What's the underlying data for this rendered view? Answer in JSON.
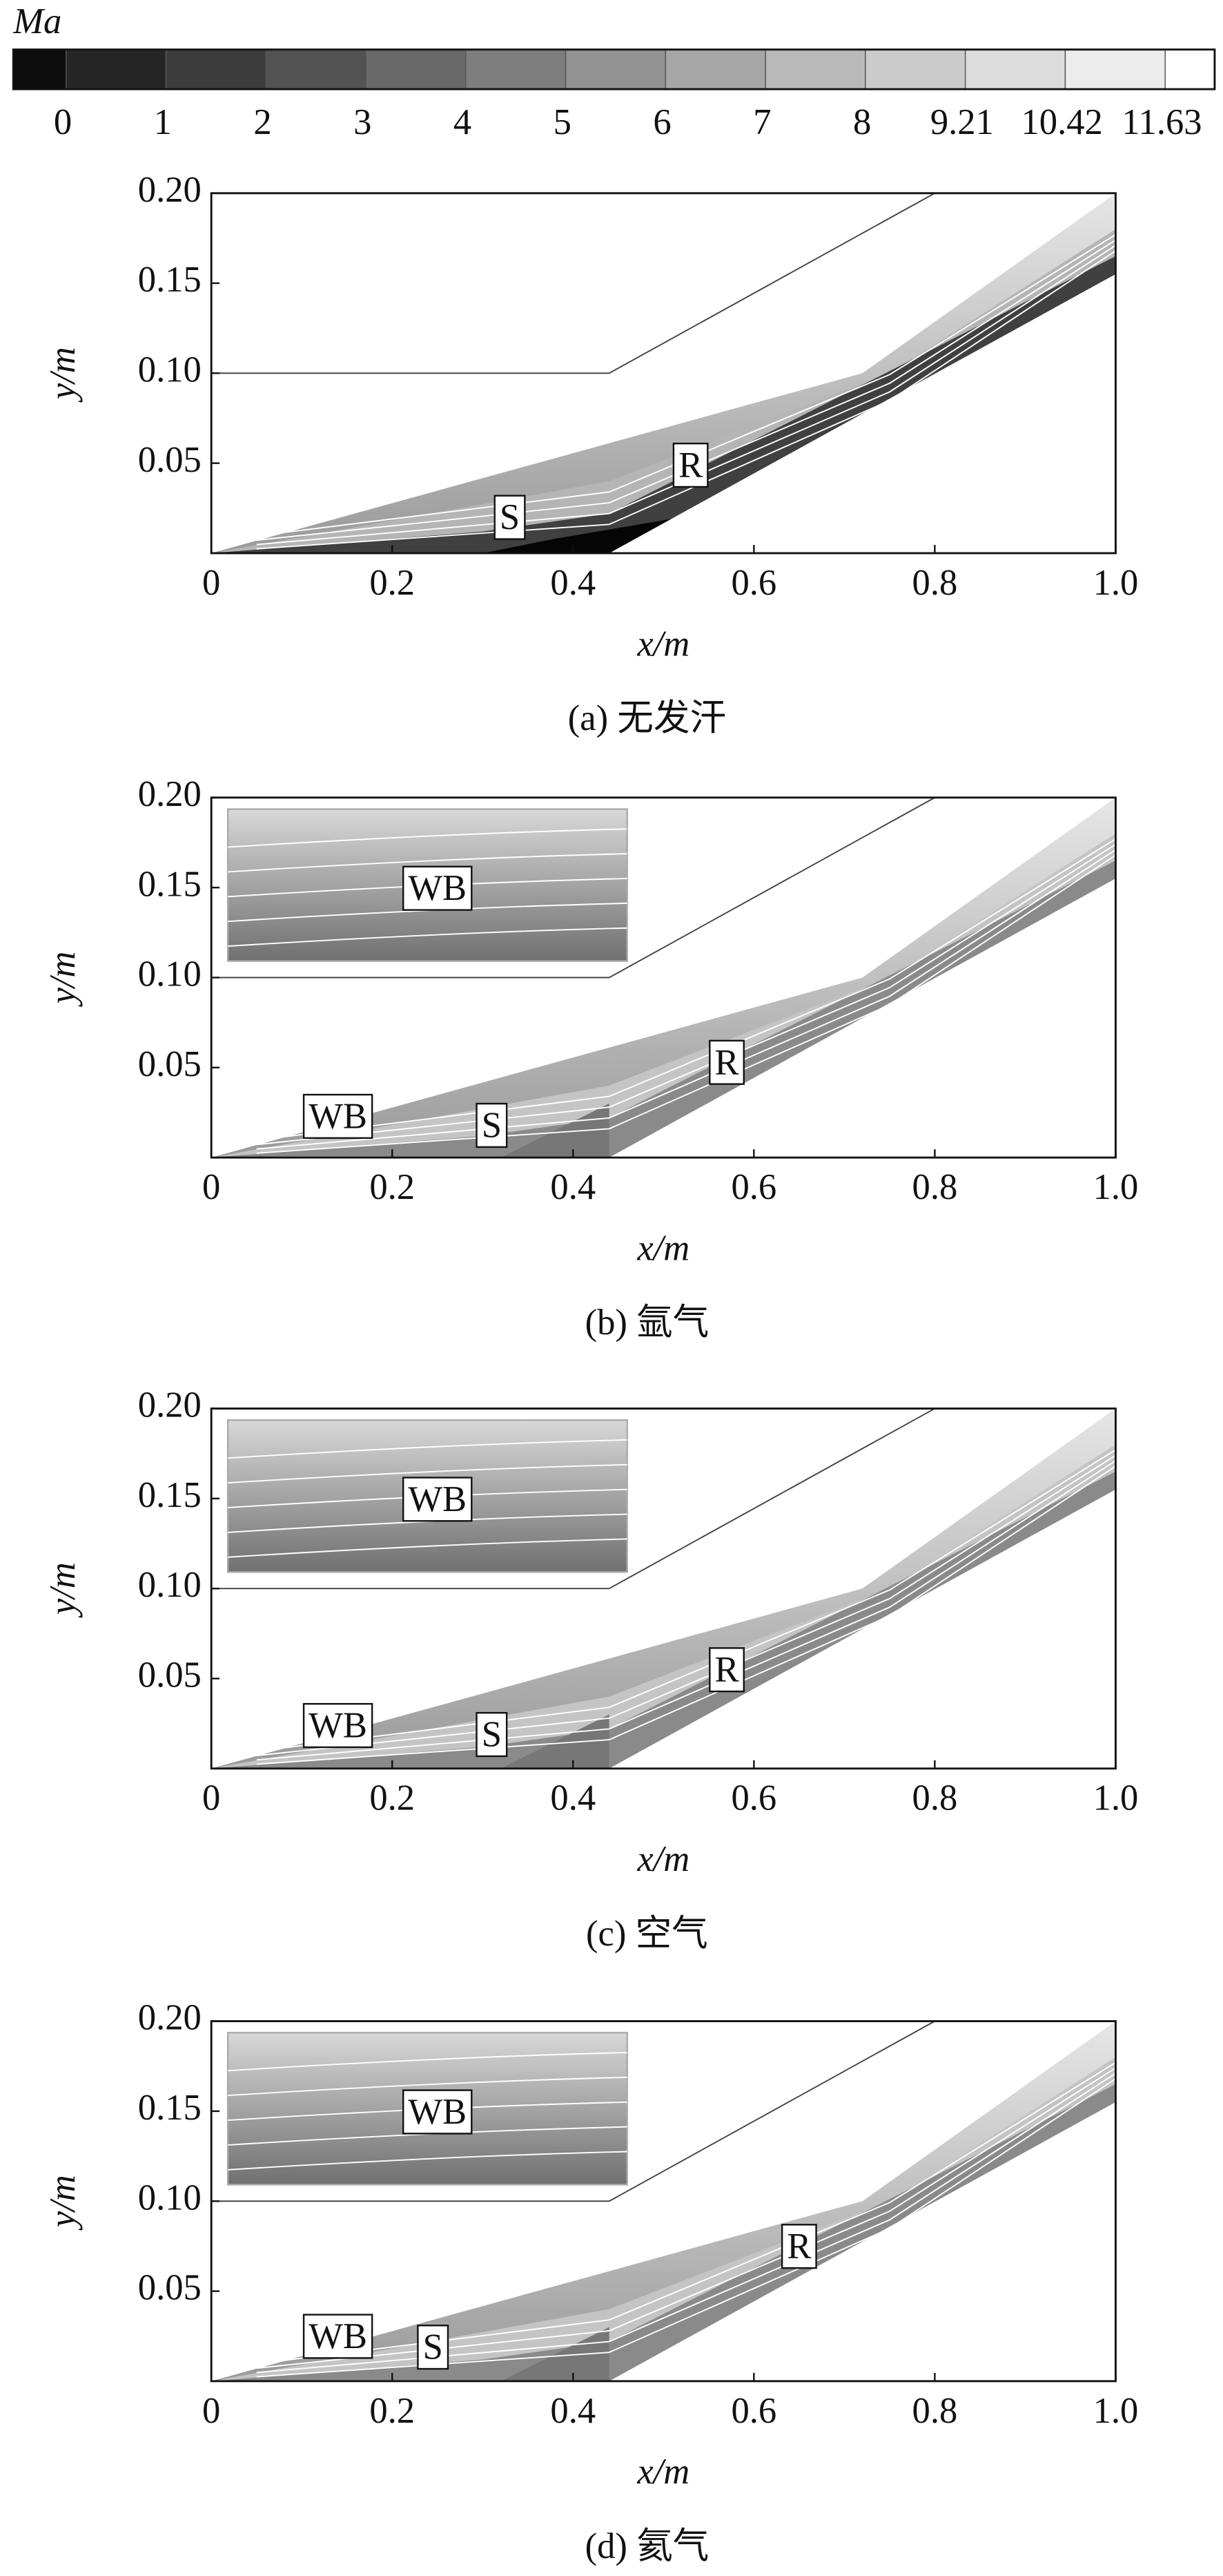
{
  "chart_data": [
    {
      "type": "colorbar",
      "title": "Ma",
      "colors": [
        "#0d0d0d",
        "#262626",
        "#3c3c3c",
        "#525252",
        "#696969",
        "#7e7e7e",
        "#939393",
        "#a6a6a6",
        "#b9b9b9",
        "#cbcbcb",
        "#dcdcdc",
        "#ececec",
        "#ffffff"
      ],
      "ticks": [
        0,
        1,
        2,
        3,
        4,
        5,
        6,
        7,
        8,
        9.21,
        10.42,
        11.63
      ]
    },
    {
      "type": "contour",
      "caption": "(a) 无发汗",
      "xlabel": "x/m",
      "ylabel": "y/m",
      "xlim": [
        0,
        1
      ],
      "ylim": [
        0,
        0.2
      ],
      "xticks": [
        0,
        0.2,
        0.4,
        0.6,
        0.8,
        {
          "value": 1,
          "label": "1.0"
        }
      ],
      "yticks": [
        0.05,
        {
          "value": 0.1,
          "label": "0.10"
        },
        0.15,
        {
          "value": 0.2,
          "label": "0.20"
        }
      ],
      "annotations": [
        {
          "text": "S",
          "x": 0.33,
          "y": 0.018
        },
        {
          "text": "R",
          "x": 0.53,
          "y": 0.047
        }
      ]
    },
    {
      "type": "contour",
      "caption": "(b) 氩气",
      "xlabel": "x/m",
      "ylabel": "y/m",
      "xlim": [
        0,
        1
      ],
      "ylim": [
        0,
        0.2
      ],
      "xticks": [
        0,
        0.2,
        0.4,
        0.6,
        0.8,
        {
          "value": 1,
          "label": "1.0"
        }
      ],
      "yticks": [
        0.05,
        {
          "value": 0.1,
          "label": "0.10"
        },
        0.15,
        {
          "value": 0.2,
          "label": "0.20"
        }
      ],
      "inset": {
        "label": "WB"
      },
      "annotations": [
        {
          "text": "WB",
          "x": 0.14,
          "y": 0.021
        },
        {
          "text": "S",
          "x": 0.31,
          "y": 0.016
        },
        {
          "text": "R",
          "x": 0.57,
          "y": 0.051
        }
      ]
    },
    {
      "type": "contour",
      "caption": "(c) 空气",
      "xlabel": "x/m",
      "ylabel": "y/m",
      "xlim": [
        0,
        1
      ],
      "ylim": [
        0,
        0.2
      ],
      "xticks": [
        0,
        0.2,
        0.4,
        0.6,
        0.8,
        {
          "value": 1,
          "label": "1.0"
        }
      ],
      "yticks": [
        0.05,
        {
          "value": 0.1,
          "label": "0.10"
        },
        0.15,
        {
          "value": 0.2,
          "label": "0.20"
        }
      ],
      "inset": {
        "label": "WB"
      },
      "annotations": [
        {
          "text": "WB",
          "x": 0.14,
          "y": 0.022
        },
        {
          "text": "S",
          "x": 0.31,
          "y": 0.017
        },
        {
          "text": "R",
          "x": 0.57,
          "y": 0.053
        }
      ]
    },
    {
      "type": "contour",
      "caption": "(d) 氦气",
      "xlabel": "x/m",
      "ylabel": "y/m",
      "xlim": [
        0,
        1
      ],
      "ylim": [
        0,
        0.2
      ],
      "xticks": [
        0,
        0.2,
        0.4,
        0.6,
        0.8,
        {
          "value": 1,
          "label": "1.0"
        }
      ],
      "yticks": [
        0.05,
        {
          "value": 0.1,
          "label": "0.10"
        },
        0.15,
        {
          "value": 0.2,
          "label": "0.20"
        }
      ],
      "inset": {
        "label": "WB"
      },
      "annotations": [
        {
          "text": "WB",
          "x": 0.14,
          "y": 0.023
        },
        {
          "text": "S",
          "x": 0.245,
          "y": 0.017
        },
        {
          "text": "R",
          "x": 0.65,
          "y": 0.073
        }
      ]
    }
  ]
}
